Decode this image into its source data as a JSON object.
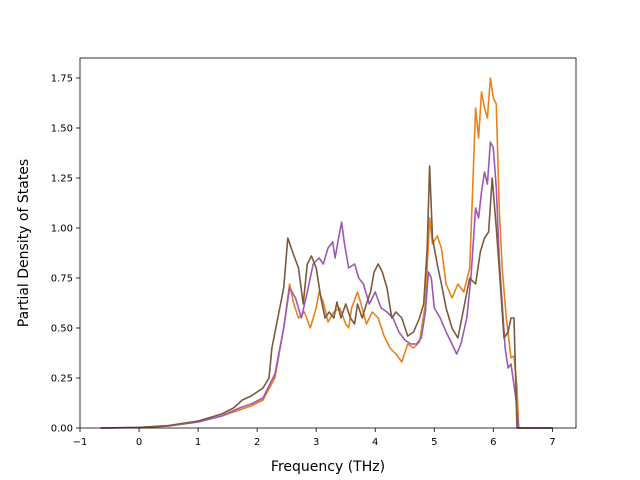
{
  "chart_data": {
    "type": "line",
    "title": "",
    "xlabel": "Frequency (THz)",
    "ylabel": "Partial Density of States",
    "xlim": [
      -1.0,
      7.4
    ],
    "ylim": [
      0.0,
      1.85
    ],
    "xticks": [
      -1,
      0,
      1,
      2,
      3,
      4,
      5,
      6,
      7
    ],
    "xtick_labels": [
      "−1",
      "0",
      "1",
      "2",
      "3",
      "4",
      "5",
      "6",
      "7"
    ],
    "yticks": [
      0,
      0.25,
      0.5,
      0.75,
      1.0,
      1.25,
      1.5,
      1.75
    ],
    "ytick_labels": [
      "0.00",
      "0.25",
      "0.50",
      "0.75",
      "1.00",
      "1.25",
      "1.50",
      "1.75"
    ],
    "grid": false,
    "legend": "none",
    "series": [
      {
        "color": "#e8821e",
        "points": [
          [
            -0.65,
            0.0
          ],
          [
            0.0,
            0.002
          ],
          [
            0.5,
            0.01
          ],
          [
            1.0,
            0.03
          ],
          [
            1.4,
            0.06
          ],
          [
            1.7,
            0.09
          ],
          [
            1.9,
            0.11
          ],
          [
            2.1,
            0.14
          ],
          [
            2.3,
            0.25
          ],
          [
            2.45,
            0.5
          ],
          [
            2.55,
            0.72
          ],
          [
            2.62,
            0.62
          ],
          [
            2.7,
            0.55
          ],
          [
            2.8,
            0.58
          ],
          [
            2.9,
            0.5
          ],
          [
            3.0,
            0.6
          ],
          [
            3.05,
            0.68
          ],
          [
            3.12,
            0.63
          ],
          [
            3.2,
            0.53
          ],
          [
            3.3,
            0.58
          ],
          [
            3.4,
            0.6
          ],
          [
            3.5,
            0.52
          ],
          [
            3.55,
            0.5
          ],
          [
            3.6,
            0.6
          ],
          [
            3.7,
            0.68
          ],
          [
            3.78,
            0.6
          ],
          [
            3.85,
            0.52
          ],
          [
            3.95,
            0.58
          ],
          [
            4.05,
            0.55
          ],
          [
            4.15,
            0.46
          ],
          [
            4.25,
            0.4
          ],
          [
            4.35,
            0.37
          ],
          [
            4.45,
            0.33
          ],
          [
            4.55,
            0.42
          ],
          [
            4.65,
            0.4
          ],
          [
            4.75,
            0.43
          ],
          [
            4.85,
            0.62
          ],
          [
            4.92,
            1.05
          ],
          [
            4.97,
            0.92
          ],
          [
            5.05,
            0.96
          ],
          [
            5.12,
            0.9
          ],
          [
            5.2,
            0.72
          ],
          [
            5.3,
            0.65
          ],
          [
            5.4,
            0.72
          ],
          [
            5.5,
            0.68
          ],
          [
            5.6,
            0.8
          ],
          [
            5.65,
            1.2
          ],
          [
            5.7,
            1.6
          ],
          [
            5.75,
            1.45
          ],
          [
            5.8,
            1.68
          ],
          [
            5.85,
            1.6
          ],
          [
            5.9,
            1.55
          ],
          [
            5.95,
            1.75
          ],
          [
            6.0,
            1.65
          ],
          [
            6.05,
            1.62
          ],
          [
            6.1,
            1.1
          ],
          [
            6.15,
            0.8
          ],
          [
            6.22,
            0.55
          ],
          [
            6.3,
            0.35
          ],
          [
            6.35,
            0.36
          ],
          [
            6.4,
            0.2
          ],
          [
            6.43,
            0.0
          ],
          [
            7.0,
            0.0
          ]
        ]
      },
      {
        "color": "#9b59b6",
        "points": [
          [
            -0.65,
            0.0
          ],
          [
            0.0,
            0.002
          ],
          [
            0.5,
            0.01
          ],
          [
            1.0,
            0.03
          ],
          [
            1.4,
            0.06
          ],
          [
            1.7,
            0.1
          ],
          [
            1.9,
            0.12
          ],
          [
            2.1,
            0.15
          ],
          [
            2.3,
            0.27
          ],
          [
            2.45,
            0.5
          ],
          [
            2.55,
            0.7
          ],
          [
            2.65,
            0.65
          ],
          [
            2.75,
            0.55
          ],
          [
            2.85,
            0.68
          ],
          [
            2.95,
            0.82
          ],
          [
            3.05,
            0.85
          ],
          [
            3.12,
            0.82
          ],
          [
            3.2,
            0.9
          ],
          [
            3.28,
            0.93
          ],
          [
            3.32,
            0.85
          ],
          [
            3.38,
            0.95
          ],
          [
            3.43,
            1.03
          ],
          [
            3.48,
            0.92
          ],
          [
            3.55,
            0.8
          ],
          [
            3.65,
            0.82
          ],
          [
            3.72,
            0.75
          ],
          [
            3.8,
            0.72
          ],
          [
            3.9,
            0.62
          ],
          [
            4.0,
            0.68
          ],
          [
            4.1,
            0.6
          ],
          [
            4.2,
            0.58
          ],
          [
            4.3,
            0.55
          ],
          [
            4.4,
            0.48
          ],
          [
            4.5,
            0.44
          ],
          [
            4.6,
            0.42
          ],
          [
            4.7,
            0.42
          ],
          [
            4.78,
            0.45
          ],
          [
            4.85,
            0.58
          ],
          [
            4.9,
            0.78
          ],
          [
            4.95,
            0.75
          ],
          [
            5.0,
            0.6
          ],
          [
            5.1,
            0.55
          ],
          [
            5.2,
            0.48
          ],
          [
            5.3,
            0.42
          ],
          [
            5.38,
            0.37
          ],
          [
            5.45,
            0.42
          ],
          [
            5.55,
            0.55
          ],
          [
            5.62,
            0.75
          ],
          [
            5.7,
            1.1
          ],
          [
            5.75,
            1.05
          ],
          [
            5.8,
            1.18
          ],
          [
            5.85,
            1.28
          ],
          [
            5.9,
            1.22
          ],
          [
            5.95,
            1.43
          ],
          [
            6.0,
            1.4
          ],
          [
            6.05,
            1.2
          ],
          [
            6.1,
            0.85
          ],
          [
            6.2,
            0.4
          ],
          [
            6.25,
            0.3
          ],
          [
            6.3,
            0.32
          ],
          [
            6.38,
            0.15
          ],
          [
            6.43,
            0.0
          ],
          [
            7.0,
            0.0
          ]
        ]
      },
      {
        "color": "#7b5a3e",
        "points": [
          [
            -0.65,
            0.0
          ],
          [
            0.0,
            0.003
          ],
          [
            0.5,
            0.012
          ],
          [
            1.0,
            0.035
          ],
          [
            1.4,
            0.07
          ],
          [
            1.6,
            0.1
          ],
          [
            1.75,
            0.14
          ],
          [
            1.9,
            0.16
          ],
          [
            2.1,
            0.2
          ],
          [
            2.2,
            0.25
          ],
          [
            2.25,
            0.4
          ],
          [
            2.35,
            0.55
          ],
          [
            2.45,
            0.7
          ],
          [
            2.52,
            0.95
          ],
          [
            2.6,
            0.88
          ],
          [
            2.7,
            0.8
          ],
          [
            2.78,
            0.62
          ],
          [
            2.85,
            0.82
          ],
          [
            2.92,
            0.86
          ],
          [
            3.0,
            0.8
          ],
          [
            3.08,
            0.65
          ],
          [
            3.15,
            0.55
          ],
          [
            3.22,
            0.58
          ],
          [
            3.3,
            0.55
          ],
          [
            3.35,
            0.63
          ],
          [
            3.42,
            0.55
          ],
          [
            3.5,
            0.62
          ],
          [
            3.58,
            0.55
          ],
          [
            3.65,
            0.52
          ],
          [
            3.7,
            0.62
          ],
          [
            3.78,
            0.55
          ],
          [
            3.85,
            0.62
          ],
          [
            3.92,
            0.68
          ],
          [
            3.98,
            0.78
          ],
          [
            4.05,
            0.82
          ],
          [
            4.12,
            0.78
          ],
          [
            4.2,
            0.7
          ],
          [
            4.28,
            0.55
          ],
          [
            4.35,
            0.58
          ],
          [
            4.45,
            0.55
          ],
          [
            4.55,
            0.46
          ],
          [
            4.65,
            0.48
          ],
          [
            4.75,
            0.55
          ],
          [
            4.82,
            0.62
          ],
          [
            4.88,
            0.9
          ],
          [
            4.92,
            1.31
          ],
          [
            4.97,
            0.95
          ],
          [
            5.05,
            0.82
          ],
          [
            5.12,
            0.72
          ],
          [
            5.2,
            0.6
          ],
          [
            5.3,
            0.5
          ],
          [
            5.4,
            0.45
          ],
          [
            5.5,
            0.6
          ],
          [
            5.6,
            0.75
          ],
          [
            5.7,
            0.72
          ],
          [
            5.78,
            0.88
          ],
          [
            5.85,
            0.95
          ],
          [
            5.92,
            0.98
          ],
          [
            5.98,
            1.25
          ],
          [
            6.05,
            1.0
          ],
          [
            6.1,
            0.8
          ],
          [
            6.18,
            0.45
          ],
          [
            6.25,
            0.48
          ],
          [
            6.3,
            0.55
          ],
          [
            6.35,
            0.55
          ],
          [
            6.4,
            0.0
          ],
          [
            7.0,
            0.0
          ]
        ]
      }
    ]
  }
}
